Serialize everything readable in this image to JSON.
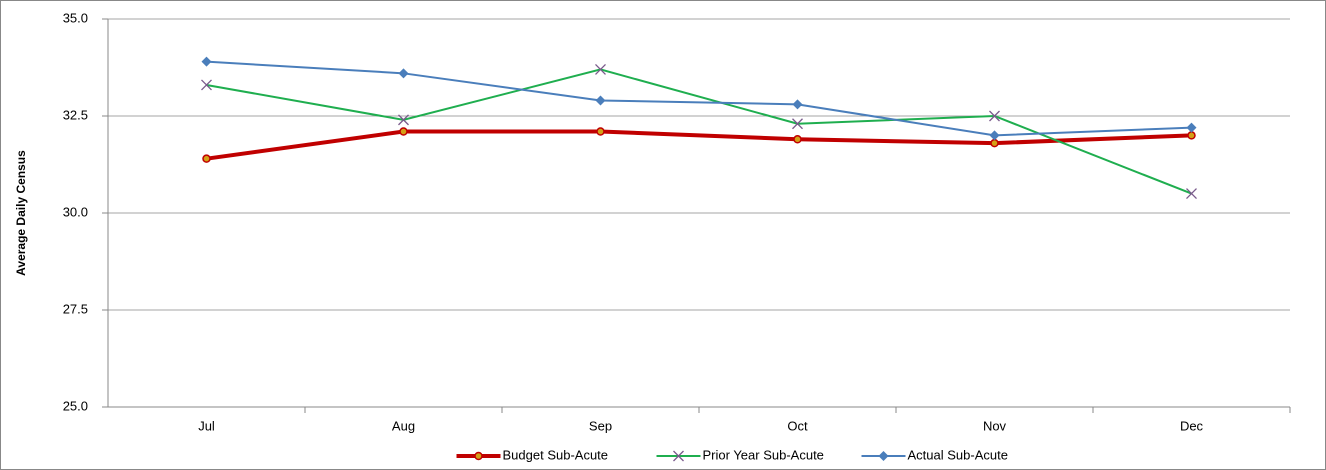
{
  "chart_data": {
    "type": "line",
    "y_label": "Average Daily Census",
    "categories": [
      "Jul",
      "Aug",
      "Sep",
      "Oct",
      "Nov",
      "Dec"
    ],
    "series": [
      {
        "name": "Budget Sub-Acute",
        "color": "#c00000",
        "marker": "circle",
        "values": [
          31.4,
          32.1,
          32.1,
          31.9,
          31.8,
          32.0
        ]
      },
      {
        "name": "Prior Year Sub-Acute",
        "color": "#1fae4f",
        "marker": "x",
        "values": [
          33.3,
          32.4,
          33.7,
          32.3,
          32.5,
          30.5
        ]
      },
      {
        "name": "Actual Sub-Acute",
        "color": "#4a7ebb",
        "marker": "diamond",
        "values": [
          33.9,
          33.6,
          32.9,
          32.8,
          32.0,
          32.2
        ]
      }
    ],
    "ylim": [
      25,
      35
    ],
    "yticks": [
      {
        "value": 25,
        "label": "25.0"
      },
      {
        "value": 27.5,
        "label": "27.5"
      },
      {
        "value": 30,
        "label": "30.0"
      },
      {
        "value": 32.5,
        "label": "32.5"
      },
      {
        "value": 35,
        "label": "35.0"
      }
    ],
    "grid": true,
    "legend": "bottom"
  }
}
